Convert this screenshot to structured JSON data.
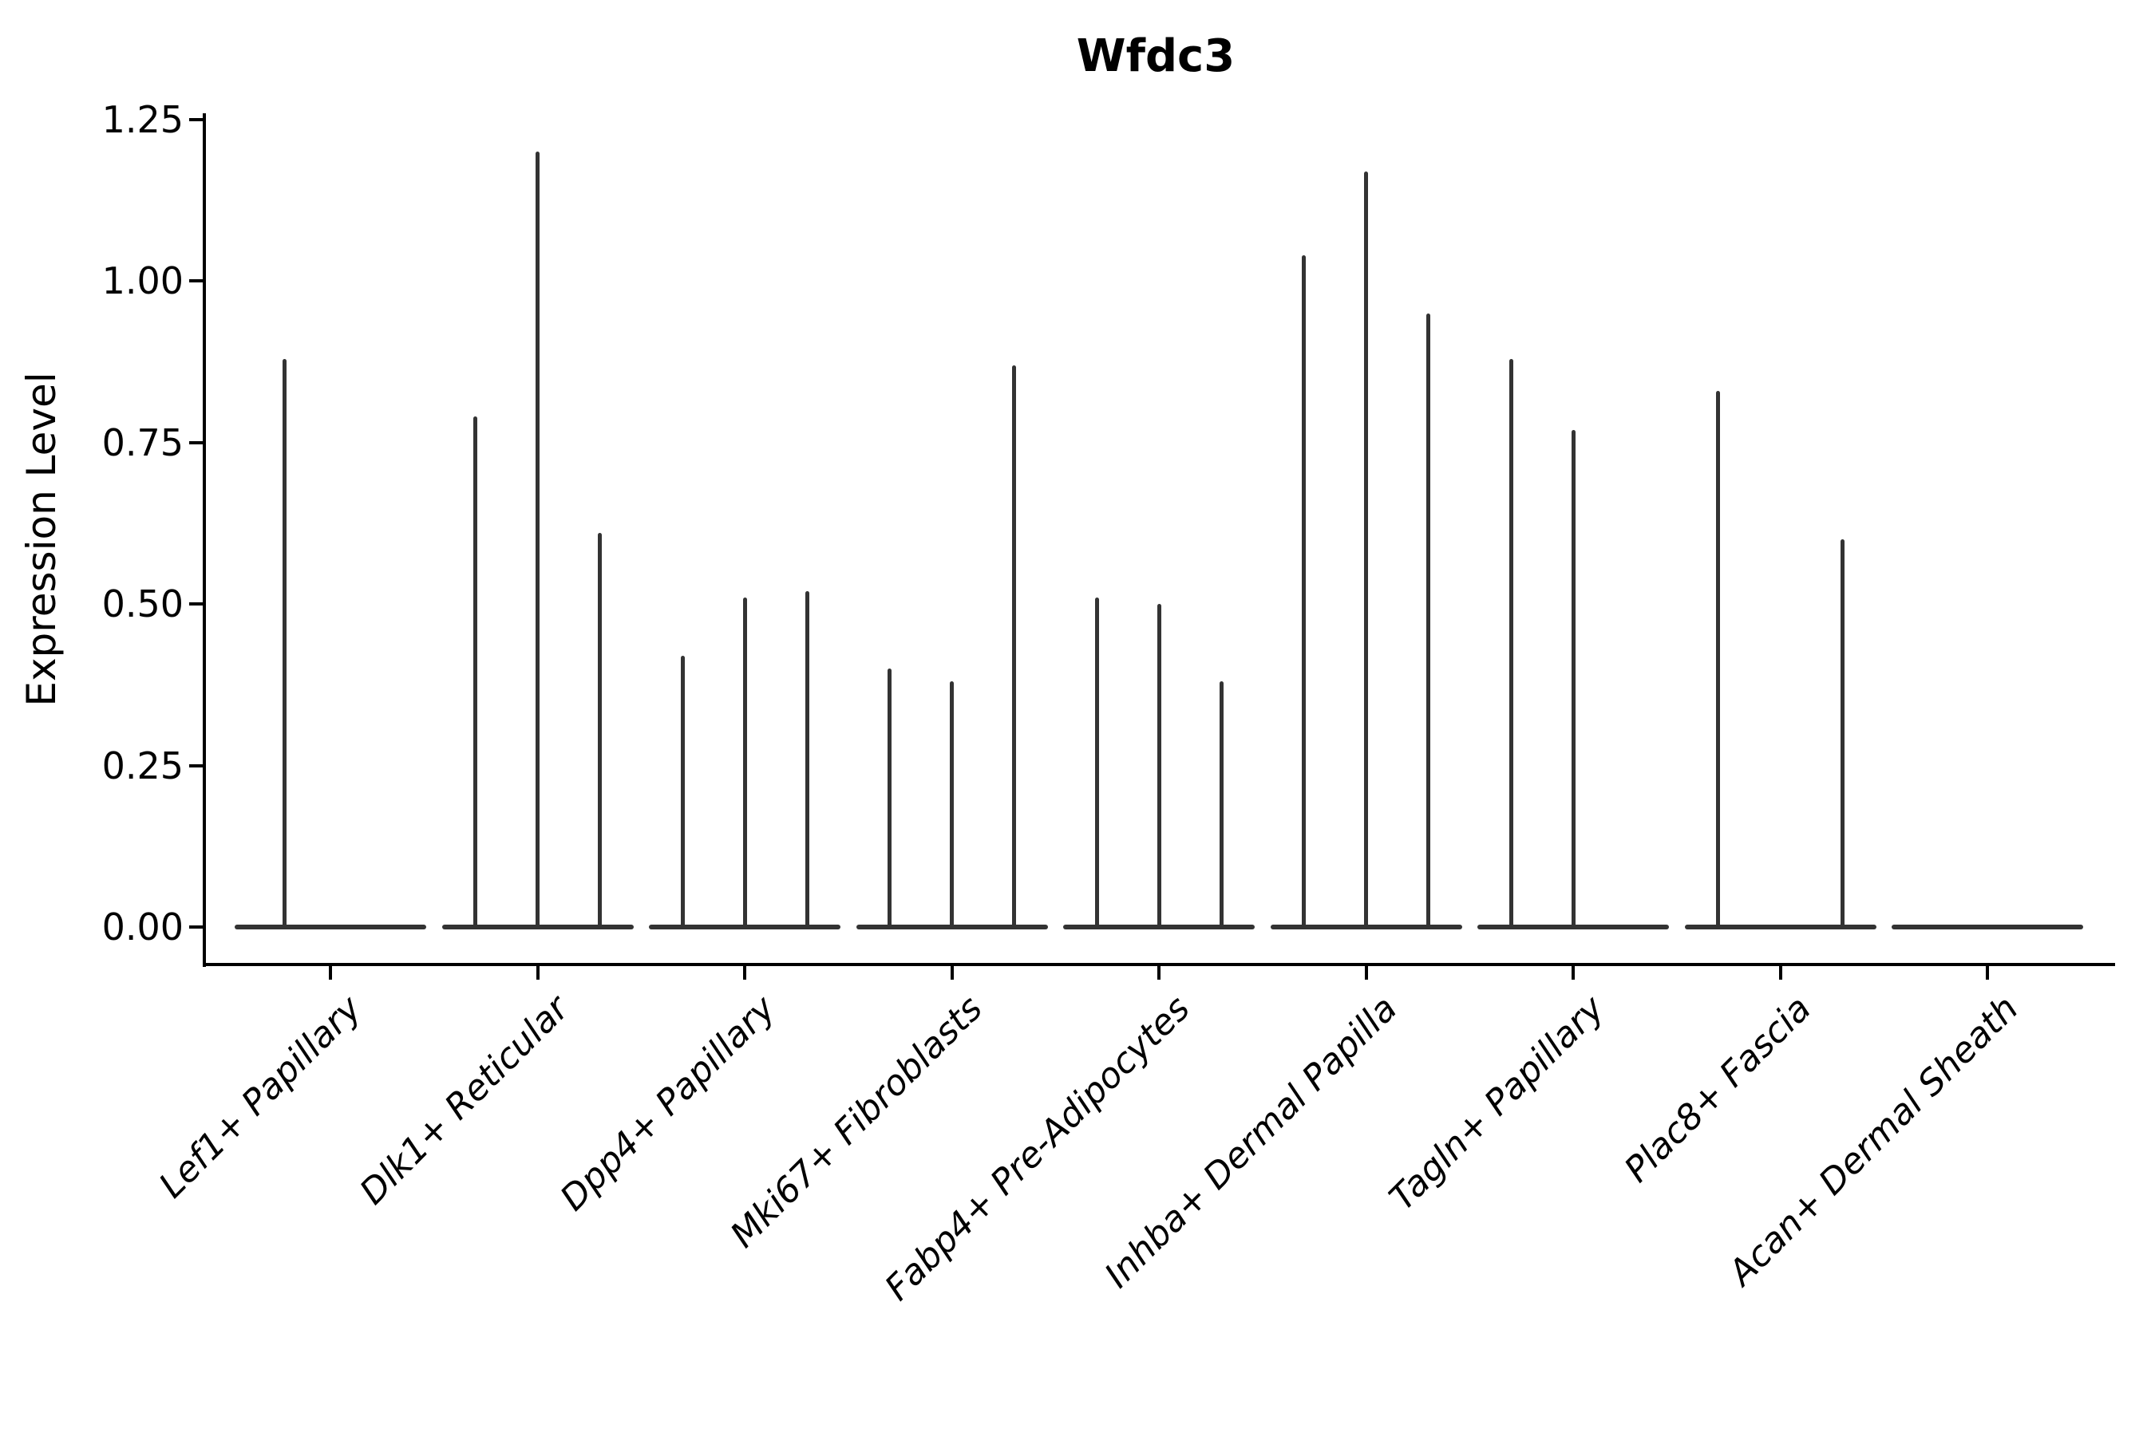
{
  "title": "Wfdc3",
  "y_axis": {
    "label": "Expression Level"
  },
  "chart_data": {
    "type": "violin",
    "title": "Wfdc3",
    "xlabel": "",
    "ylabel": "Expression Level",
    "ylim": [
      -0.06,
      1.26
    ],
    "grid": false,
    "legend": "none",
    "violin_color": "#333333",
    "categories": [
      "Lef1+ Papillary",
      "Dlk1+ Reticular",
      "Dpp4+ Papillary",
      "Mki67+ Fibroblasts",
      "Fabp4+ Pre-Adipocytes",
      "Inhba+ Dermal Papilla",
      "Tagln+ Papillary",
      "Plac8+ Fascia",
      "Acan+ Dermal Sheath"
    ],
    "y_ticks": [
      0.0,
      0.25,
      0.5,
      0.75,
      1.0,
      1.25
    ],
    "y_tick_labels": [
      "0.00",
      "0.25",
      "0.50",
      "0.75",
      "1.00",
      "1.25"
    ],
    "violins": [
      {
        "category": "Lef1+ Papillary",
        "baseline": 0,
        "spikes": [
          {
            "dx": -58,
            "max": 0.88
          }
        ]
      },
      {
        "category": "Dlk1+ Reticular",
        "baseline": 0,
        "spikes": [
          {
            "dx": -78,
            "max": 0.79
          },
          {
            "dx": 0,
            "max": 1.2
          },
          {
            "dx": 78,
            "max": 0.61
          }
        ]
      },
      {
        "category": "Dpp4+ Papillary",
        "baseline": 0,
        "spikes": [
          {
            "dx": -78,
            "max": 0.42
          },
          {
            "dx": 0,
            "max": 0.51
          },
          {
            "dx": 78,
            "max": 0.52
          }
        ]
      },
      {
        "category": "Mki67+ Fibroblasts",
        "baseline": 0,
        "spikes": [
          {
            "dx": -78,
            "max": 0.4
          },
          {
            "dx": 0,
            "max": 0.38
          },
          {
            "dx": 78,
            "max": 0.87
          }
        ]
      },
      {
        "category": "Fabp4+ Pre-Adipocytes",
        "baseline": 0,
        "spikes": [
          {
            "dx": -78,
            "max": 0.51
          },
          {
            "dx": 0,
            "max": 0.5
          },
          {
            "dx": 78,
            "max": 0.38
          }
        ]
      },
      {
        "category": "Inhba+ Dermal Papilla",
        "baseline": 0,
        "spikes": [
          {
            "dx": -78,
            "max": 1.04
          },
          {
            "dx": 0,
            "max": 1.17
          },
          {
            "dx": 78,
            "max": 0.95
          }
        ]
      },
      {
        "category": "Tagln+ Papillary",
        "baseline": 0,
        "spikes": [
          {
            "dx": -78,
            "max": 0.88
          },
          {
            "dx": 0,
            "max": 0.77
          }
        ]
      },
      {
        "category": "Plac8+ Fascia",
        "baseline": 0,
        "spikes": [
          {
            "dx": -78,
            "max": 0.83
          },
          {
            "dx": 78,
            "max": 0.6
          }
        ]
      },
      {
        "category": "Acan+ Dermal Sheath",
        "baseline": 0,
        "spikes": []
      }
    ]
  }
}
